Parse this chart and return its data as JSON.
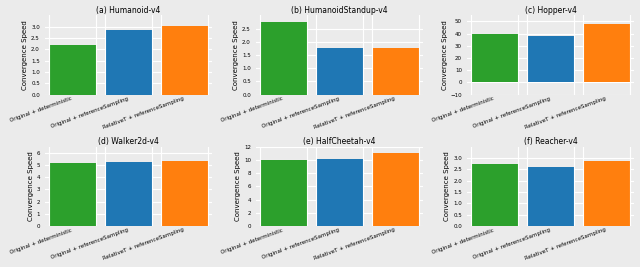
{
  "subplots": [
    {
      "title": "(a) Humanoid-v4",
      "ylabel": "Convergence Speed",
      "bars": [
        {
          "label": "Original + deterministic",
          "value": 2.2,
          "color": "#2ca02c"
        },
        {
          "label": "Original + referenceSampling",
          "value": 2.85,
          "color": "#1f77b4"
        },
        {
          "label": "RelativeT + referenceSampling",
          "value": 3.05,
          "color": "#ff7f0e"
        }
      ],
      "ylim": [
        0,
        3.5
      ],
      "yticks": [
        0.0,
        0.5,
        1.0,
        1.5,
        2.0,
        2.5,
        3.0
      ]
    },
    {
      "title": "(b) HumanoidStandup-v4",
      "ylabel": "Convergence Speed",
      "bars": [
        {
          "label": "Original + deterministic",
          "value": 2.75,
          "color": "#2ca02c"
        },
        {
          "label": "Original + referenceSampling",
          "value": 1.75,
          "color": "#1f77b4"
        },
        {
          "label": "RelativeT + referenceSampling",
          "value": 1.75,
          "color": "#ff7f0e"
        }
      ],
      "ylim": [
        0,
        3.0
      ],
      "yticks": [
        0.0,
        0.5,
        1.0,
        1.5,
        2.0,
        2.5
      ]
    },
    {
      "title": "(c) Hopper-v4",
      "ylabel": "Convergence Speed",
      "bars": [
        {
          "label": "Original + deterministic",
          "value": 40.0,
          "color": "#2ca02c"
        },
        {
          "label": "Original + referenceSampling",
          "value": 38.0,
          "color": "#1f77b4"
        },
        {
          "label": "RelativeT + referenceSampling",
          "value": 48.0,
          "color": "#ff7f0e"
        }
      ],
      "ylim": [
        -10,
        55
      ],
      "yticks": [
        -10,
        0,
        10,
        20,
        30,
        40,
        50
      ]
    },
    {
      "title": "(d) Walker2d-v4",
      "ylabel": "Convergence Speed",
      "bars": [
        {
          "label": "Original + deterministic",
          "value": 5.2,
          "color": "#2ca02c"
        },
        {
          "label": "Original + referenceSampling",
          "value": 5.25,
          "color": "#1f77b4"
        },
        {
          "label": "RelativeT + referenceSampling",
          "value": 5.3,
          "color": "#ff7f0e"
        }
      ],
      "ylim": [
        0,
        6.5
      ],
      "yticks": [
        0,
        1,
        2,
        3,
        4,
        5,
        6
      ]
    },
    {
      "title": "(e) HalfCheetah-v4",
      "ylabel": "Convergence Speed",
      "bars": [
        {
          "label": "Original + deterministic",
          "value": 10.0,
          "color": "#2ca02c"
        },
        {
          "label": "Original + referenceSampling",
          "value": 10.2,
          "color": "#1f77b4"
        },
        {
          "label": "RelativeT + referenceSampling",
          "value": 11.0,
          "color": "#ff7f0e"
        }
      ],
      "ylim": [
        0,
        12
      ],
      "yticks": [
        0,
        2,
        4,
        6,
        8,
        10,
        12
      ]
    },
    {
      "title": "(f) Reacher-v4",
      "ylabel": "Convergence Speed",
      "bars": [
        {
          "label": "Original + deterministic",
          "value": 2.75,
          "color": "#2ca02c"
        },
        {
          "label": "Original + referenceSampling",
          "value": 2.6,
          "color": "#1f77b4"
        },
        {
          "label": "RelativeT + referenceSampling",
          "value": 2.85,
          "color": "#ff7f0e"
        }
      ],
      "ylim": [
        0,
        3.5
      ],
      "yticks": [
        0.0,
        0.5,
        1.0,
        1.5,
        2.0,
        2.5,
        3.0
      ]
    }
  ],
  "background_color": "#ebebeb",
  "bar_width": 0.85,
  "grid_color": "#ffffff",
  "tick_label_fontsize": 4.0,
  "title_fontsize": 5.5,
  "ylabel_fontsize": 5.0,
  "label_rotation": 20
}
